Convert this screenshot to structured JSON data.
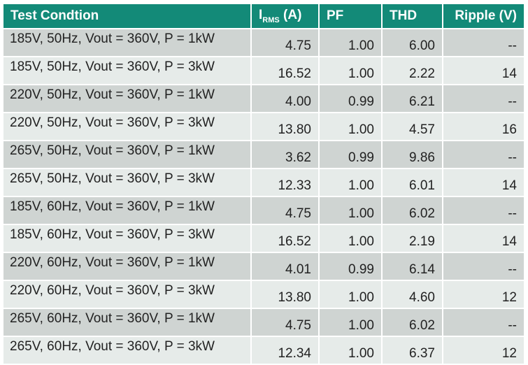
{
  "table": {
    "header": [
      "Test Condtion",
      {
        "main": "I",
        "sub": "RMS",
        "rest": "(A)"
      },
      "PF",
      "THD",
      "Ripple (V)"
    ],
    "rows": [
      [
        "185V, 50Hz, Vout = 360V, P = 1kW",
        "4.75",
        "1.00",
        "6.00",
        "--"
      ],
      [
        "185V, 50Hz, Vout = 360V, P = 3kW",
        "16.52",
        "1.00",
        "2.22",
        "14"
      ],
      [
        "220V, 50Hz, Vout = 360V, P = 1kW",
        "4.00",
        "0.99",
        "6.21",
        "--"
      ],
      [
        "220V, 50Hz, Vout = 360V, P = 3kW",
        "13.80",
        "1.00",
        "4.57",
        "16"
      ],
      [
        "265V, 50Hz, Vout = 360V, P = 1kW",
        "3.62",
        "0.99",
        "9.86",
        "--"
      ],
      [
        "265V, 50Hz, Vout = 360V, P = 3kW",
        "12.33",
        "1.00",
        "6.01",
        "14"
      ],
      [
        "185V, 60Hz, Vout = 360V, P = 1kW",
        "4.75",
        "1.00",
        "6.02",
        "--"
      ],
      [
        "185V, 60Hz, Vout = 360V, P = 3kW",
        "16.52",
        "1.00",
        "2.19",
        "14"
      ],
      [
        "220V, 60Hz, Vout = 360V, P = 1kW",
        "4.01",
        "0.99",
        "6.14",
        "--"
      ],
      [
        "220V, 60Hz, Vout = 360V, P = 3kW",
        "13.80",
        "1.00",
        "4.60",
        "12"
      ],
      [
        "265V, 60Hz, Vout = 360V, P = 1kW",
        "4.75",
        "1.00",
        "6.02",
        "--"
      ],
      [
        "265V, 60Hz, Vout = 360V, P = 3kW",
        "12.34",
        "1.00",
        "6.37",
        "12"
      ]
    ]
  }
}
